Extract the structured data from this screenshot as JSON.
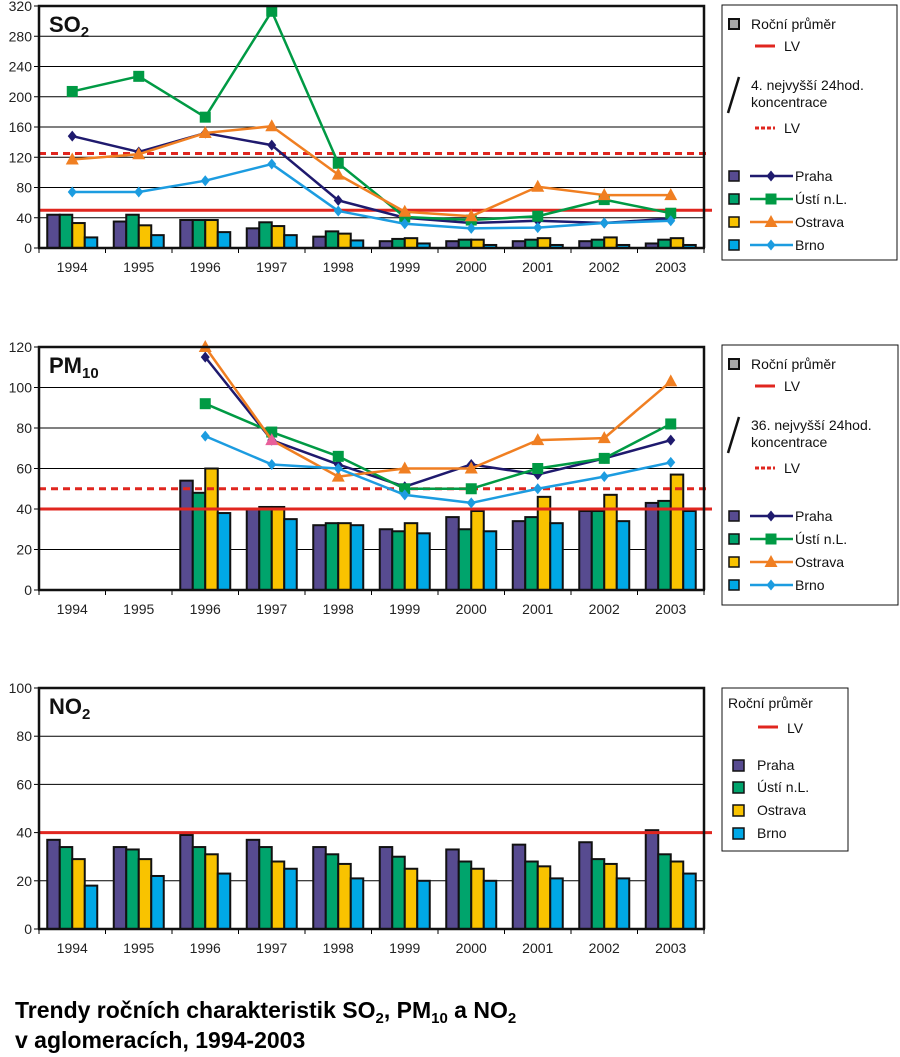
{
  "figure": {
    "title_parts": [
      "Trendy ročních charakteristik SO",
      "2",
      ", PM",
      "10",
      " a NO",
      "2"
    ],
    "title_line2": "v aglomeracích, 1994-2003"
  },
  "chart_data": [
    {
      "id": "so2",
      "type": "bar",
      "overlay_type": "line",
      "title": "SO",
      "title_sub": "2",
      "xlabel": "",
      "ylabel": "",
      "categories": [
        "1994",
        "1995",
        "1996",
        "1997",
        "1998",
        "1999",
        "2000",
        "2001",
        "2002",
        "2003"
      ],
      "ylim": [
        0,
        320
      ],
      "yticks": [
        0,
        40,
        80,
        120,
        160,
        200,
        240,
        280,
        320
      ],
      "grid": true,
      "legend_position": "right",
      "series_measure": "Roční průměr",
      "series": [
        {
          "name": "Praha",
          "color": "#574B90",
          "values": [
            44,
            35,
            37,
            26,
            15,
            9,
            9,
            9,
            9,
            6
          ]
        },
        {
          "name": "Ústí n.L.",
          "color": "#00A46C",
          "values": [
            44,
            44,
            37,
            34,
            22,
            12,
            11,
            11,
            11,
            11
          ]
        },
        {
          "name": "Ostrava",
          "color": "#F9C300",
          "values": [
            33,
            30,
            37,
            29,
            19,
            13,
            11,
            13,
            14,
            13
          ]
        },
        {
          "name": "Brno",
          "color": "#00A8E6",
          "values": [
            14,
            17,
            21,
            17,
            10,
            6,
            4,
            4,
            4,
            4
          ]
        }
      ],
      "line_series_measure": "4. nejvyšší 24hod. koncentrace",
      "line_series": [
        {
          "name": "Praha",
          "color": "#1F1A6E",
          "marker": "diamond",
          "values": [
            148,
            127,
            152,
            136,
            63,
            40,
            33,
            36,
            33,
            39
          ]
        },
        {
          "name": "Ústí n.L.",
          "color": "#009A44",
          "marker": "square",
          "values": [
            207,
            227,
            173,
            313,
            112,
            41,
            37,
            42,
            64,
            46
          ]
        },
        {
          "name": "Ostrava",
          "color": "#F07F22",
          "marker": "triangle",
          "values": [
            117,
            124,
            152,
            161,
            97,
            48,
            42,
            81,
            70,
            70
          ]
        },
        {
          "name": "Brno",
          "color": "#1C9CE0",
          "marker": "diamond",
          "values": [
            74,
            74,
            89,
            111,
            49,
            32,
            26,
            27,
            33,
            36
          ]
        }
      ],
      "reference_lines": [
        {
          "label": "LV",
          "value": 50,
          "style": "solid",
          "color": "#E0261F",
          "refers_to": "annual"
        },
        {
          "label": "LV",
          "value": 125,
          "style": "dashed",
          "color": "#E0261F",
          "refers_to": "peak"
        }
      ],
      "legend": {
        "annual_label": "Roční průměr",
        "annual_lv_label": "LV",
        "peak_label_line1": "4. nejvyšší 24hod.",
        "peak_label_line2": "koncentrace",
        "peak_lv_label": "LV"
      }
    },
    {
      "id": "pm10",
      "type": "bar",
      "overlay_type": "line",
      "title": "PM",
      "title_sub": "10",
      "xlabel": "",
      "ylabel": "",
      "categories": [
        "1994",
        "1995",
        "1996",
        "1997",
        "1998",
        "1999",
        "2000",
        "2001",
        "2002",
        "2003"
      ],
      "ylim": [
        0,
        120
      ],
      "yticks": [
        0,
        20,
        40,
        60,
        80,
        100,
        120
      ],
      "grid": true,
      "legend_position": "right",
      "series_measure": "Roční průměr",
      "series": [
        {
          "name": "Praha",
          "color": "#574B90",
          "values": [
            null,
            null,
            54,
            40,
            32,
            30,
            36,
            34,
            39,
            43
          ]
        },
        {
          "name": "Ústí n.L.",
          "color": "#00A46C",
          "values": [
            null,
            null,
            48,
            41,
            33,
            29,
            30,
            36,
            39,
            44
          ]
        },
        {
          "name": "Ostrava",
          "color": "#F9C300",
          "values": [
            null,
            null,
            60,
            41,
            33,
            33,
            39,
            46,
            47,
            57
          ]
        },
        {
          "name": "Brno",
          "color": "#00A8E6",
          "values": [
            null,
            null,
            38,
            35,
            32,
            28,
            29,
            33,
            34,
            39
          ]
        }
      ],
      "line_series_measure": "36. nejvyšší 24hod. koncentrace",
      "line_series": [
        {
          "name": "Praha",
          "color": "#1F1A6E",
          "marker": "diamond",
          "values": [
            null,
            null,
            115,
            74,
            62,
            51,
            62,
            57,
            65,
            74
          ]
        },
        {
          "name": "Ústí n.L.",
          "color": "#009A44",
          "marker": "square",
          "values": [
            null,
            null,
            92,
            78,
            66,
            50,
            50,
            60,
            65,
            82
          ]
        },
        {
          "name": "Ostrava",
          "color": "#F07F22",
          "marker": "triangle",
          "values": [
            null,
            null,
            120,
            74,
            56,
            60,
            60,
            74,
            75,
            103
          ],
          "marker_overrides": [
            {
              "index": 3,
              "color": "#E8609A"
            }
          ]
        },
        {
          "name": "Brno",
          "color": "#1C9CE0",
          "marker": "diamond",
          "values": [
            null,
            null,
            76,
            62,
            60,
            47,
            43,
            50,
            56,
            63
          ]
        }
      ],
      "reference_lines": [
        {
          "label": "LV",
          "value": 40,
          "style": "solid",
          "color": "#E0261F",
          "refers_to": "annual"
        },
        {
          "label": "LV",
          "value": 50,
          "style": "dashed",
          "color": "#E0261F",
          "refers_to": "peak"
        }
      ],
      "legend": {
        "annual_label": "Roční průměr",
        "annual_lv_label": "LV",
        "peak_label_line1": "36. nejvyšší 24hod.",
        "peak_label_line2": "koncentrace",
        "peak_lv_label": "LV"
      }
    },
    {
      "id": "no2",
      "type": "bar",
      "title": "NO",
      "title_sub": "2",
      "xlabel": "",
      "ylabel": "",
      "categories": [
        "1994",
        "1995",
        "1996",
        "1997",
        "1998",
        "1999",
        "2000",
        "2001",
        "2002",
        "2003"
      ],
      "ylim": [
        0,
        100
      ],
      "yticks": [
        0,
        20,
        40,
        60,
        80,
        100
      ],
      "grid": true,
      "legend_position": "right",
      "series_measure": "Roční průměr",
      "series": [
        {
          "name": "Praha",
          "color": "#574B90",
          "values": [
            37,
            34,
            39,
            37,
            34,
            34,
            33,
            35,
            36,
            41
          ]
        },
        {
          "name": "Ústí n.L.",
          "color": "#00A46C",
          "values": [
            34,
            33,
            34,
            34,
            31,
            30,
            28,
            28,
            29,
            31
          ]
        },
        {
          "name": "Ostrava",
          "color": "#F9C300",
          "values": [
            29,
            29,
            31,
            28,
            27,
            25,
            25,
            26,
            27,
            28
          ]
        },
        {
          "name": "Brno",
          "color": "#00A8E6",
          "values": [
            18,
            22,
            23,
            25,
            21,
            20,
            20,
            21,
            21,
            23
          ]
        }
      ],
      "reference_lines": [
        {
          "label": "LV",
          "value": 40,
          "style": "solid",
          "color": "#E0261F",
          "refers_to": "annual"
        }
      ],
      "legend": {
        "annual_label": "Roční průměr",
        "annual_lv_label": "LV"
      }
    }
  ]
}
